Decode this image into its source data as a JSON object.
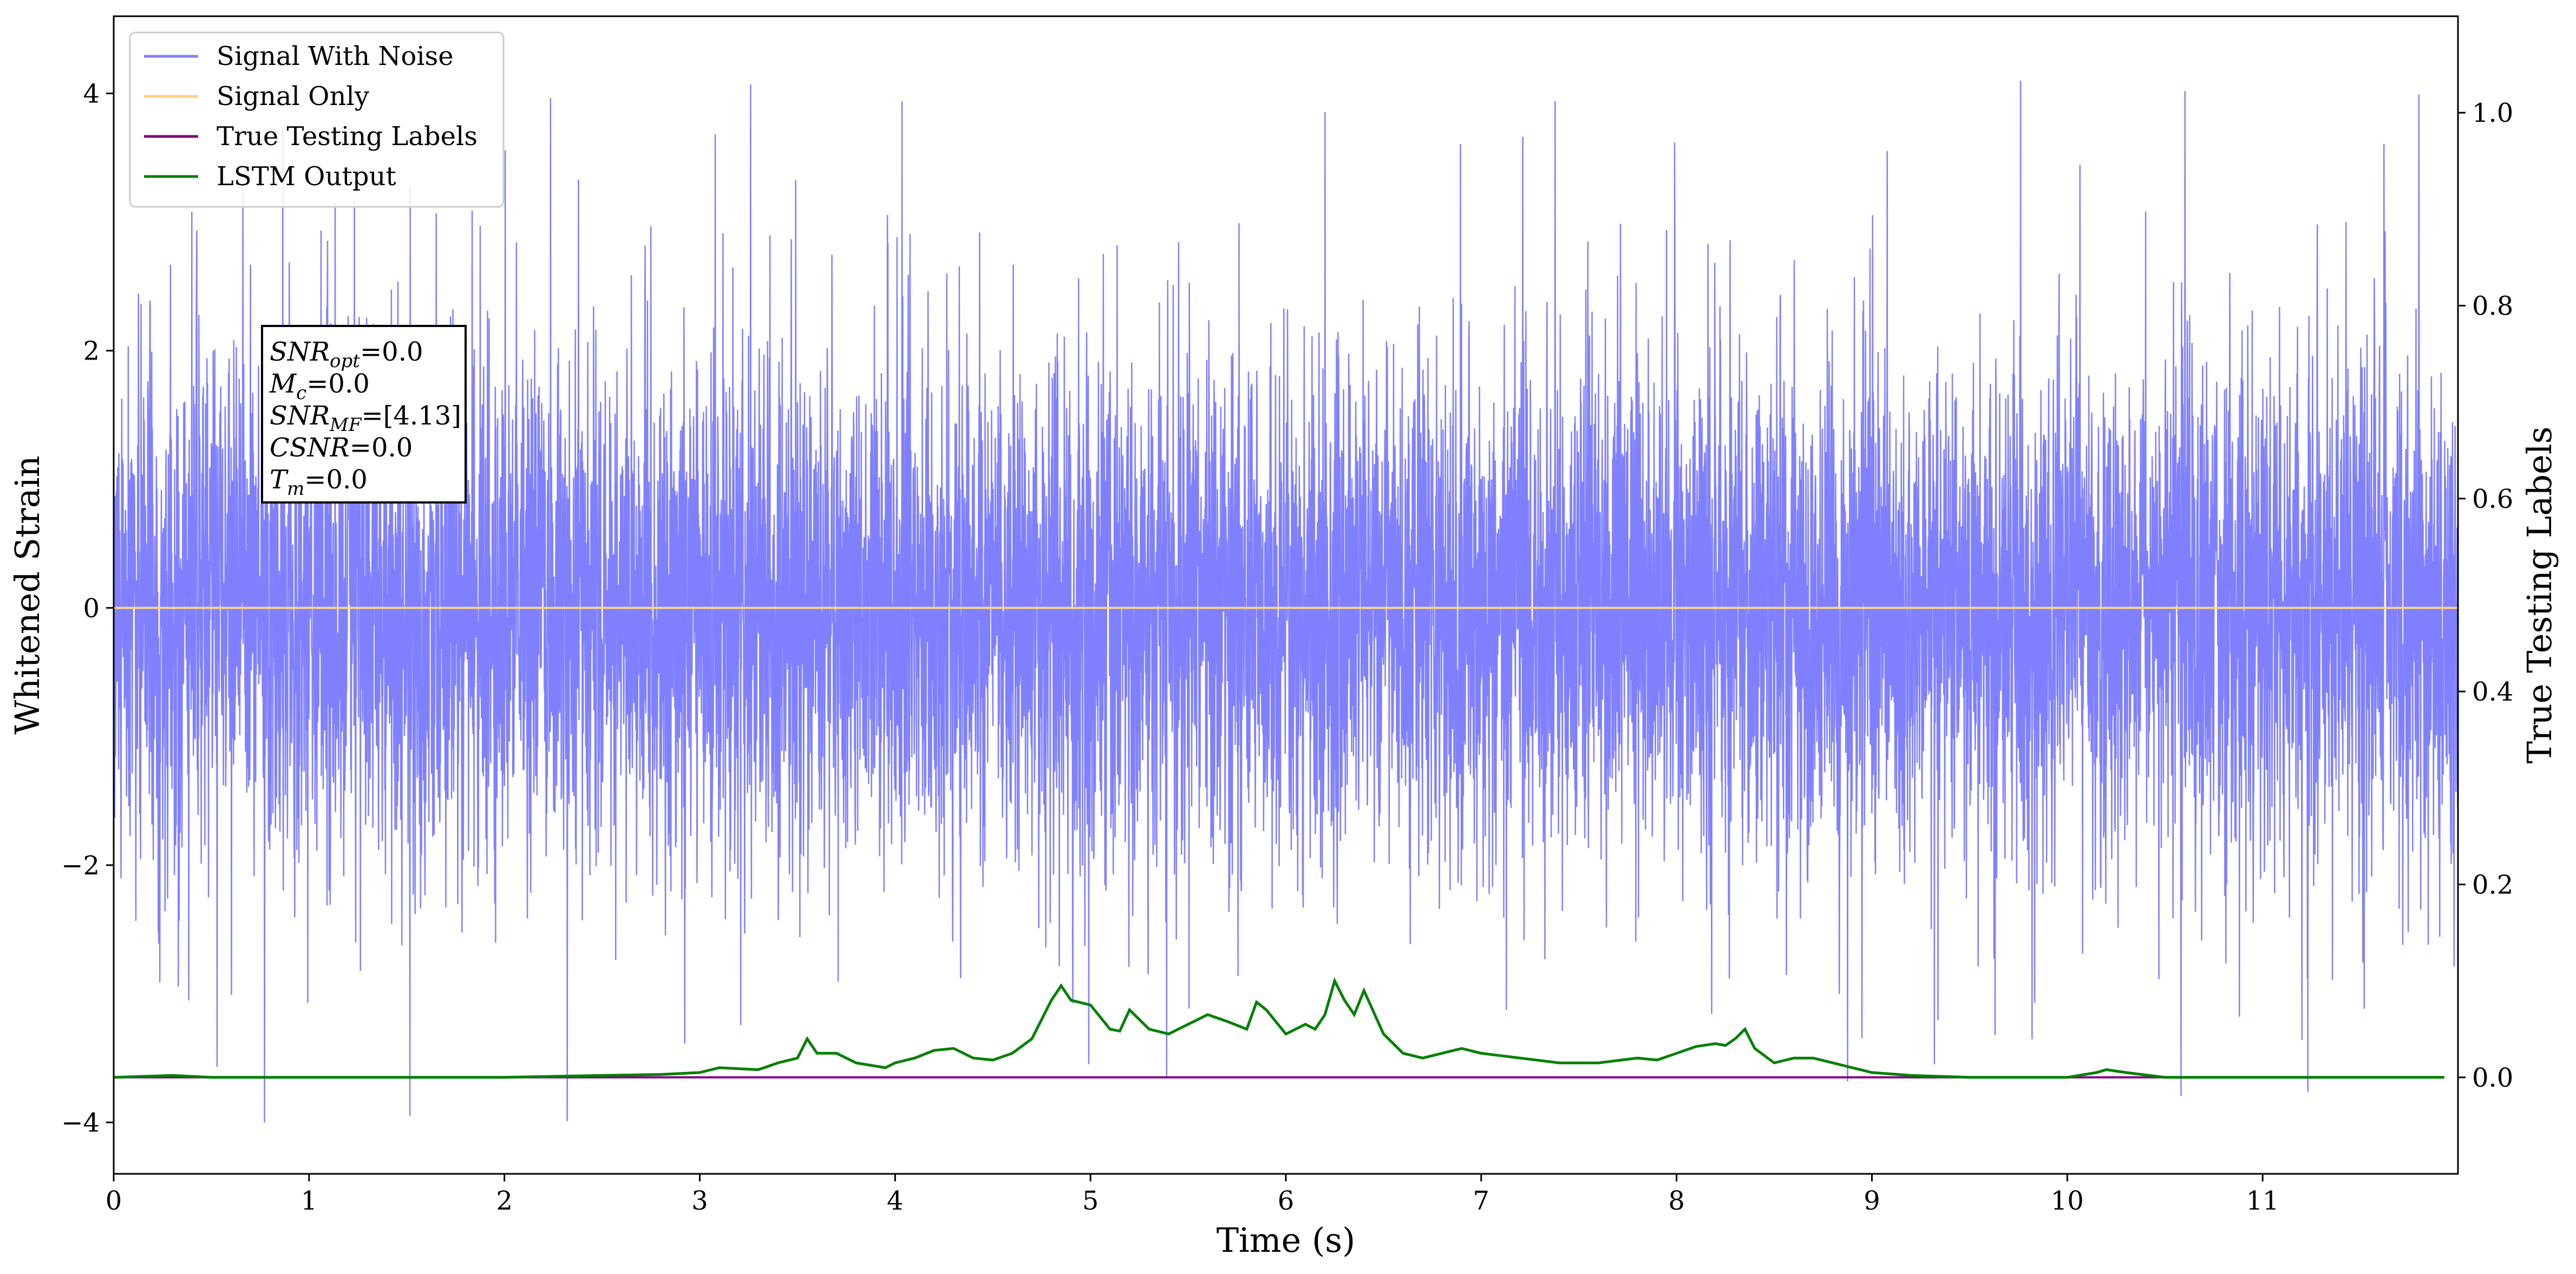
{
  "chart_data": {
    "type": "line",
    "xlabel": "Time (s)",
    "ylabel_left": "Whitened Strain",
    "ylabel_right": "True Testing Labels",
    "xlim": [
      0,
      12
    ],
    "ylim_left": [
      -4.4,
      4.6
    ],
    "ylim_right": [
      -0.1,
      1.1
    ],
    "x_ticks": [
      0,
      1,
      2,
      3,
      4,
      5,
      6,
      7,
      8,
      9,
      10,
      11
    ],
    "y_ticks_left": [
      -4,
      -2,
      0,
      2,
      4
    ],
    "y_ticks_left_labels": [
      "−4",
      "−2",
      "0",
      "2",
      "4"
    ],
    "y_ticks_right": [
      0.0,
      0.2,
      0.4,
      0.6,
      0.8,
      1.0
    ],
    "y_ticks_right_labels": [
      "0.0",
      "0.2",
      "0.4",
      "0.6",
      "0.8",
      "1.0"
    ],
    "grid": false,
    "legend_position": "top-left",
    "series": [
      {
        "name": "Signal With Noise",
        "color": "#8080ff",
        "axis": "left",
        "kind": "noise",
        "std": 1.0,
        "peak_max": 4.2,
        "peak_min": -4.0
      },
      {
        "name": "Signal Only",
        "color": "#ffd27f",
        "axis": "left",
        "x": [
          0,
          12
        ],
        "y": [
          0,
          0
        ]
      },
      {
        "name": "True Testing Labels",
        "color": "#800080",
        "axis": "right",
        "x": [
          0,
          11.93
        ],
        "y": [
          0,
          0
        ]
      },
      {
        "name": "LSTM Output",
        "color": "#008000",
        "axis": "right",
        "x": [
          0,
          0.3,
          0.5,
          1.0,
          1.5,
          2.0,
          2.5,
          2.8,
          3.0,
          3.1,
          3.3,
          3.4,
          3.5,
          3.55,
          3.6,
          3.7,
          3.8,
          3.95,
          4.0,
          4.1,
          4.2,
          4.3,
          4.4,
          4.5,
          4.6,
          4.7,
          4.8,
          4.85,
          4.9,
          5.0,
          5.1,
          5.15,
          5.2,
          5.3,
          5.4,
          5.5,
          5.6,
          5.7,
          5.8,
          5.85,
          5.9,
          6.0,
          6.1,
          6.15,
          6.2,
          6.25,
          6.3,
          6.35,
          6.4,
          6.5,
          6.6,
          6.7,
          6.8,
          6.9,
          7.0,
          7.2,
          7.4,
          7.6,
          7.8,
          7.9,
          8.0,
          8.1,
          8.2,
          8.25,
          8.3,
          8.35,
          8.4,
          8.5,
          8.6,
          8.7,
          8.8,
          8.9,
          9.0,
          9.2,
          9.5,
          9.8,
          10.0,
          10.15,
          10.2,
          10.3,
          10.5,
          10.8,
          11.0,
          11.5,
          11.93
        ],
        "y": [
          0.0,
          0.002,
          0.0,
          0.0,
          0.0,
          0.0,
          0.002,
          0.003,
          0.005,
          0.01,
          0.008,
          0.015,
          0.02,
          0.04,
          0.025,
          0.025,
          0.015,
          0.01,
          0.015,
          0.02,
          0.028,
          0.03,
          0.02,
          0.018,
          0.025,
          0.04,
          0.08,
          0.095,
          0.08,
          0.075,
          0.05,
          0.048,
          0.07,
          0.05,
          0.045,
          0.055,
          0.065,
          0.058,
          0.05,
          0.078,
          0.07,
          0.045,
          0.055,
          0.05,
          0.065,
          0.1,
          0.08,
          0.065,
          0.09,
          0.045,
          0.025,
          0.02,
          0.025,
          0.03,
          0.025,
          0.02,
          0.015,
          0.015,
          0.02,
          0.018,
          0.025,
          0.032,
          0.035,
          0.033,
          0.04,
          0.05,
          0.03,
          0.015,
          0.02,
          0.02,
          0.015,
          0.01,
          0.005,
          0.002,
          0.0,
          0.0,
          0.0,
          0.005,
          0.008,
          0.005,
          0.0,
          0.0,
          0.0,
          0.0,
          0.0
        ]
      }
    ],
    "annotation_lines": [
      {
        "sym": "SNR",
        "sub": "opt",
        "value": "=0.0"
      },
      {
        "sym": "M",
        "sub": "c",
        "value": "=0.0"
      },
      {
        "sym": "SNR",
        "sub": "MF",
        "value": "=[4.13]"
      },
      {
        "sym": "CSNR",
        "sub": "",
        "value": "=0.0"
      },
      {
        "sym": "T",
        "sub": "m",
        "value": "=0.0"
      }
    ]
  }
}
